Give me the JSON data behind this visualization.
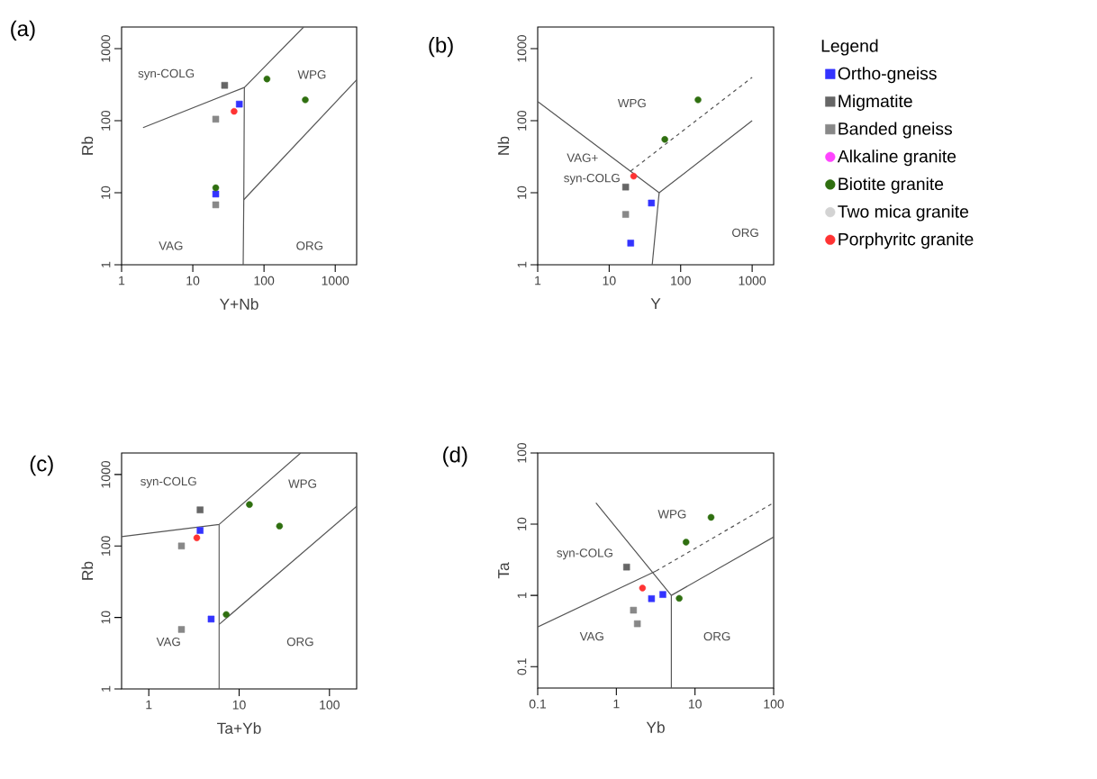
{
  "chart_data": [
    {
      "type": "scatter",
      "title": "(a)",
      "xlabel": "Y+Nb",
      "ylabel": "Rb",
      "log": "xy",
      "xlim": [
        1,
        2000
      ],
      "ylim": [
        1,
        2000
      ],
      "xticks": [
        1,
        10,
        100,
        1000
      ],
      "yticks": [
        1,
        10,
        100,
        1000
      ],
      "series": [
        {
          "color": "#3333ff",
          "marker": "square",
          "x": [
            45,
            21
          ],
          "values": [
            170,
            9.6
          ]
        },
        {
          "color": "#666666",
          "marker": "square",
          "x": [
            28
          ],
          "values": [
            310
          ]
        },
        {
          "color": "#888888",
          "marker": "square",
          "x": [
            21,
            21
          ],
          "values": [
            105,
            6.8
          ]
        },
        {
          "color": "#2f6f10",
          "marker": "circle",
          "x": [
            110,
            380,
            21
          ],
          "values": [
            380,
            195,
            11.7
          ]
        },
        {
          "color": "#ff3333",
          "marker": "circle",
          "x": [
            38
          ],
          "values": [
            135
          ]
        },
        {
          "type": "line",
          "color": "#555555",
          "marker": "none",
          "line_style": "solid",
          "x": [
            2,
            53,
            360
          ],
          "values": [
            80,
            290,
            2000
          ]
        },
        {
          "type": "line",
          "color": "#555555",
          "marker": "none",
          "line_style": "solid",
          "x": [
            53,
            52,
            51
          ],
          "values": [
            290,
            8,
            1
          ]
        },
        {
          "type": "line",
          "color": "#555555",
          "marker": "none",
          "line_style": "solid",
          "x": [
            52,
            2000
          ],
          "values": [
            8,
            370
          ]
        }
      ],
      "annotations": [
        "syn-COLG",
        "WPG",
        "VAG",
        "ORG"
      ]
    },
    {
      "type": "scatter",
      "title": "(b)",
      "xlabel": "Y",
      "ylabel": "Nb",
      "log": "xy",
      "xlim": [
        1,
        2000
      ],
      "ylim": [
        1,
        2000
      ],
      "xticks": [
        1,
        10,
        100,
        1000
      ],
      "yticks": [
        1,
        10,
        100,
        1000
      ],
      "legend": "right",
      "legend_title": "Legend",
      "series": [
        {
          "name": "Ortho-gneiss",
          "color": "#3333ff",
          "marker": "square",
          "x": [
            39,
            20
          ],
          "values": [
            7.2,
            2
          ]
        },
        {
          "name": "Migmatite",
          "color": "#666666",
          "marker": "square",
          "x": [
            17
          ],
          "values": [
            12
          ]
        },
        {
          "name": "Banded gneiss",
          "color": "#888888",
          "marker": "square",
          "x": [
            17
          ],
          "values": [
            5
          ]
        },
        {
          "name": "Alkaline granite",
          "color": "#ff44ff",
          "marker": "circle"
        },
        {
          "name": "Biotite granite",
          "color": "#2f6f10",
          "marker": "circle",
          "x": [
            175,
            60
          ],
          "values": [
            195,
            55
          ]
        },
        {
          "name": "Two mica granite",
          "color": "#d3d3d3",
          "marker": "circle"
        },
        {
          "name": "Porphyritc granite",
          "color": "#ff3333",
          "marker": "circle",
          "x": [
            22
          ],
          "values": [
            17
          ]
        },
        {
          "type": "line",
          "color": "#555555",
          "marker": "none",
          "line_style": "solid",
          "x": [
            1,
            50,
            1000
          ],
          "values": [
            185,
            10,
            100
          ]
        },
        {
          "type": "line",
          "color": "#555555",
          "marker": "none",
          "line_style": "solid",
          "x": [
            50,
            40
          ],
          "values": [
            10,
            1
          ]
        },
        {
          "type": "line",
          "color": "#555555",
          "marker": "none",
          "line_style": "dashed",
          "x": [
            20,
            1000
          ],
          "values": [
            20,
            400
          ]
        }
      ],
      "annotations": [
        "WPG",
        "VAG+",
        "syn-COLG",
        "ORG"
      ]
    },
    {
      "type": "scatter",
      "title": "(c)",
      "xlabel": "Ta+Yb",
      "ylabel": "Rb",
      "log": "xy",
      "xlim": [
        0.5,
        200
      ],
      "ylim": [
        1,
        2000
      ],
      "xticks": [
        1,
        10,
        100
      ],
      "yticks": [
        1,
        10,
        100,
        1000
      ],
      "series": [
        {
          "color": "#3333ff",
          "marker": "square",
          "x": [
            3.7,
            4.9
          ],
          "values": [
            165,
            9.5
          ]
        },
        {
          "color": "#666666",
          "marker": "square",
          "x": [
            3.7
          ],
          "values": [
            320
          ]
        },
        {
          "color": "#888888",
          "marker": "square",
          "x": [
            2.3,
            2.3
          ],
          "values": [
            100,
            6.8
          ]
        },
        {
          "color": "#2f6f10",
          "marker": "circle",
          "x": [
            13,
            28,
            7.2
          ],
          "values": [
            380,
            190,
            11
          ]
        },
        {
          "color": "#ff3333",
          "marker": "circle",
          "x": [
            3.4
          ],
          "values": [
            130
          ]
        },
        {
          "type": "line",
          "color": "#555555",
          "marker": "none",
          "line_style": "solid",
          "x": [
            0.5,
            6,
            48
          ],
          "values": [
            135,
            200,
            2000
          ]
        },
        {
          "type": "line",
          "color": "#555555",
          "marker": "none",
          "line_style": "solid",
          "x": [
            6,
            6
          ],
          "values": [
            200,
            1
          ]
        },
        {
          "type": "line",
          "color": "#555555",
          "marker": "none",
          "line_style": "solid",
          "x": [
            6,
            200
          ],
          "values": [
            8,
            360
          ]
        }
      ],
      "annotations": [
        "syn-COLG",
        "WPG",
        "VAG",
        "ORG"
      ]
    },
    {
      "type": "scatter",
      "title": "(d)",
      "xlabel": "Yb",
      "ylabel": "Ta",
      "log": "xy",
      "xlim": [
        0.1,
        100
      ],
      "ylim": [
        0.05,
        100
      ],
      "xticks": [
        0.1,
        1,
        10,
        100
      ],
      "yticks": [
        0.1,
        1,
        10,
        100
      ],
      "series": [
        {
          "color": "#3333ff",
          "marker": "square",
          "x": [
            2.8,
            3.9
          ],
          "values": [
            0.9,
            1.03
          ]
        },
        {
          "color": "#666666",
          "marker": "square",
          "x": [
            1.35
          ],
          "values": [
            2.5
          ]
        },
        {
          "color": "#888888",
          "marker": "square",
          "x": [
            1.65,
            1.85
          ],
          "values": [
            0.62,
            0.4
          ]
        },
        {
          "color": "#2f6f10",
          "marker": "circle",
          "x": [
            16,
            7.7,
            6.3
          ],
          "values": [
            12.5,
            5.6,
            0.91
          ]
        },
        {
          "color": "#ff3333",
          "marker": "circle",
          "x": [
            2.15
          ],
          "values": [
            1.27
          ]
        },
        {
          "type": "line",
          "color": "#555555",
          "marker": "none",
          "line_style": "solid",
          "x": [
            0.1,
            3.2
          ],
          "values": [
            0.36,
            2.2
          ]
        },
        {
          "type": "line",
          "color": "#555555",
          "marker": "none",
          "line_style": "dashed",
          "x": [
            3.2,
            100
          ],
          "values": [
            2.2,
            20
          ]
        },
        {
          "type": "line",
          "color": "#555555",
          "marker": "none",
          "line_style": "solid",
          "x": [
            0.55,
            5,
            100
          ],
          "values": [
            20,
            1,
            6.6
          ]
        },
        {
          "type": "line",
          "color": "#555555",
          "marker": "none",
          "line_style": "solid",
          "x": [
            5,
            5
          ],
          "values": [
            1,
            0.05
          ]
        }
      ],
      "annotations": [
        "WPG",
        "syn-COLG",
        "VAG",
        "ORG"
      ]
    }
  ]
}
